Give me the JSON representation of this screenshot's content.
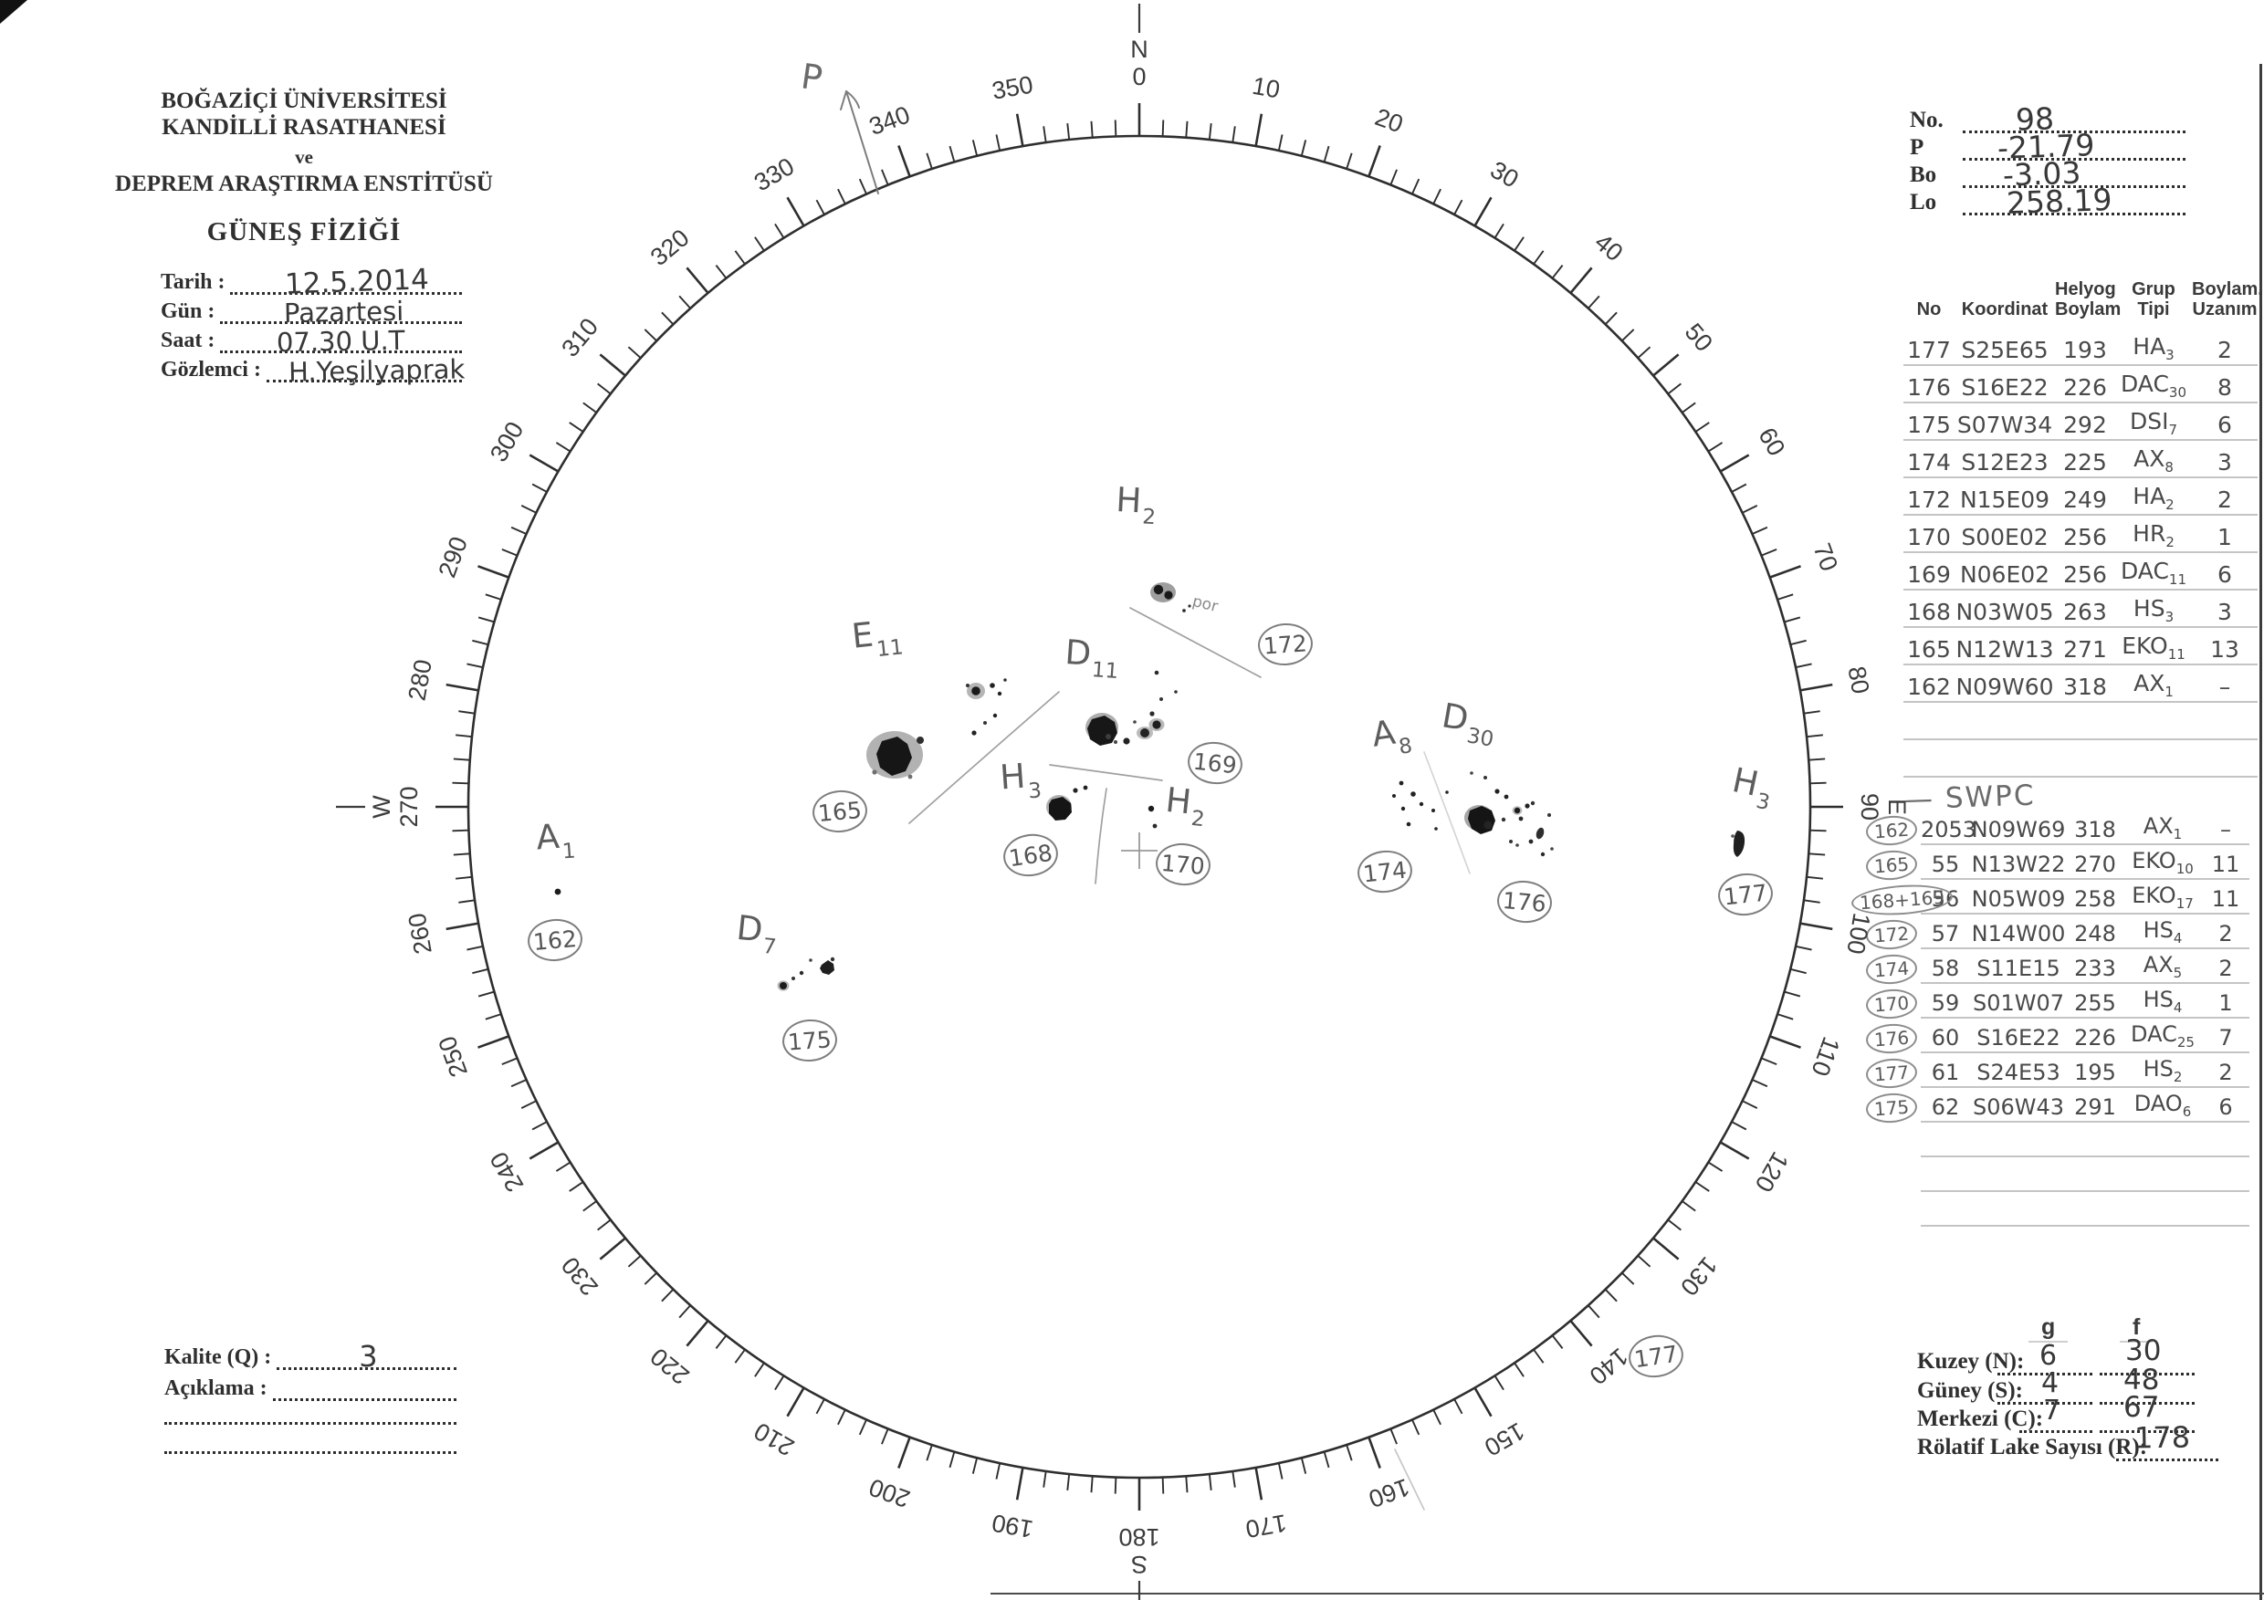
{
  "header": {
    "institution_lines": [
      "BOĞAZİÇİ ÜNİVERSİTESİ",
      "KANDİLLİ RASATHANESİ",
      "ve",
      "DEPREM ARAŞTIRMA ENSTİTÜSÜ"
    ],
    "section_title": "GÜNEŞ FİZİĞİ",
    "fields": [
      {
        "label": "Tarih :",
        "value": "12.5.2014"
      },
      {
        "label": "Gün :",
        "value": "Pazartesi"
      },
      {
        "label": "Saat :",
        "value": "07.30 U.T"
      },
      {
        "label": "Gözlemci :",
        "value": "H.Yeşilyaprak"
      }
    ]
  },
  "ephemeris": {
    "rows": [
      {
        "label": "No.",
        "value": "98"
      },
      {
        "label": "P",
        "value": "-21.79"
      },
      {
        "label": "Bo",
        "value": "-3.03"
      },
      {
        "label": "Lo",
        "value": "258.19"
      }
    ]
  },
  "groups_table": {
    "headers": [
      [
        "No",
        ""
      ],
      [
        "Koordinat",
        ""
      ],
      [
        "Helyog",
        "Boylam"
      ],
      [
        "Grup",
        "Tipi"
      ],
      [
        "Boylam.",
        "Uzanım"
      ]
    ],
    "rows": [
      {
        "no": "177",
        "koordinat": "S25E65",
        "helyog": "193",
        "tip": "HA",
        "tip_sub": "3",
        "uzanim": "2"
      },
      {
        "no": "176",
        "koordinat": "S16E22",
        "helyog": "226",
        "tip": "DAC",
        "tip_sub": "30",
        "uzanim": "8"
      },
      {
        "no": "175",
        "koordinat": "S07W34",
        "helyog": "292",
        "tip": "DSI",
        "tip_sub": "7",
        "uzanim": "6"
      },
      {
        "no": "174",
        "koordinat": "S12E23",
        "helyog": "225",
        "tip": "AX",
        "tip_sub": "8",
        "uzanim": "3"
      },
      {
        "no": "172",
        "koordinat": "N15E09",
        "helyog": "249",
        "tip": "HA",
        "tip_sub": "2",
        "uzanim": "2"
      },
      {
        "no": "170",
        "koordinat": "S00E02",
        "helyog": "256",
        "tip": "HR",
        "tip_sub": "2",
        "uzanim": "1"
      },
      {
        "no": "169",
        "koordinat": "N06E02",
        "helyog": "256",
        "tip": "DAC",
        "tip_sub": "11",
        "uzanim": "6"
      },
      {
        "no": "168",
        "koordinat": "N03W05",
        "helyog": "263",
        "tip": "HS",
        "tip_sub": "3",
        "uzanim": "3"
      },
      {
        "no": "165",
        "koordinat": "N12W13",
        "helyog": "271",
        "tip": "EKO",
        "tip_sub": "11",
        "uzanim": "13"
      },
      {
        "no": "162",
        "koordinat": "N09W60",
        "helyog": "318",
        "tip": "AX",
        "tip_sub": "1",
        "uzanim": "–"
      }
    ]
  },
  "swpc_table": {
    "heading": "— SWPC",
    "rows": [
      {
        "kandilli": "162",
        "swpc": "2053",
        "koordinat": "N09W69",
        "helyog": "318",
        "tip": "AX",
        "tip_sub": "1",
        "uzanim": "–"
      },
      {
        "kandilli": "165",
        "swpc": "55",
        "koordinat": "N13W22",
        "helyog": "270",
        "tip": "EKO",
        "tip_sub": "10",
        "uzanim": "11"
      },
      {
        "kandilli": "168+169",
        "swpc": "56",
        "koordinat": "N05W09",
        "helyog": "258",
        "tip": "EKO",
        "tip_sub": "17",
        "uzanim": "11"
      },
      {
        "kandilli": "172",
        "swpc": "57",
        "koordinat": "N14W00",
        "helyog": "248",
        "tip": "HS",
        "tip_sub": "4",
        "uzanim": "2"
      },
      {
        "kandilli": "174",
        "swpc": "58",
        "koordinat": "S11E15",
        "helyog": "233",
        "tip": "AX",
        "tip_sub": "5",
        "uzanim": "2"
      },
      {
        "kandilli": "170",
        "swpc": "59",
        "koordinat": "S01W07",
        "helyog": "255",
        "tip": "HS",
        "tip_sub": "4",
        "uzanim": "1"
      },
      {
        "kandilli": "176",
        "swpc": "60",
        "koordinat": "S16E22",
        "helyog": "226",
        "tip": "DAC",
        "tip_sub": "25",
        "uzanim": "7"
      },
      {
        "kandilli": "177",
        "swpc": "61",
        "koordinat": "S24E53",
        "helyog": "195",
        "tip": "HS",
        "tip_sub": "2",
        "uzanim": "2"
      },
      {
        "kandilli": "175",
        "swpc": "62",
        "koordinat": "S06W43",
        "helyog": "291",
        "tip": "DAO",
        "tip_sub": "6",
        "uzanim": "6"
      }
    ]
  },
  "summary": {
    "col_g": "g",
    "col_f": "f",
    "rows": [
      {
        "label": "Kuzey (N):",
        "g": "6",
        "f": "30"
      },
      {
        "label": "Güney (S):",
        "g": "4",
        "f": "48"
      },
      {
        "label": "Merkezi (C):",
        "g": "7",
        "f": "67"
      }
    ],
    "relative_label": "Rölatif Lake Sayısı (R):",
    "relative_value": "178"
  },
  "quality": {
    "label": "Kalite (Q) :",
    "value": "3",
    "aciklama_label": "Açıklama :"
  },
  "disk": {
    "pole_marker": "P",
    "cardinals": {
      "n": "N",
      "e": "E",
      "s": "S",
      "w": "W"
    },
    "degree_labels": [
      "0",
      "10",
      "20",
      "30",
      "40",
      "50",
      "60",
      "70",
      "80",
      "90",
      "100",
      "110",
      "120",
      "130",
      "140",
      "150",
      "160",
      "170",
      "180",
      "190",
      "200",
      "210",
      "220",
      "230",
      "240",
      "250",
      "260",
      "270",
      "280",
      "290",
      "300",
      "310",
      "320",
      "330",
      "340",
      "350"
    ],
    "annotations": [
      {
        "id": "165",
        "letter": "E",
        "sub": "11"
      },
      {
        "id": "169",
        "letter": "D",
        "sub": "11"
      },
      {
        "id": "168",
        "letter": "H",
        "sub": "3"
      },
      {
        "id": "170",
        "letter": "H",
        "sub": "2"
      },
      {
        "id": "172",
        "letter": "H",
        "sub": "2",
        "note": "por"
      },
      {
        "id": "174",
        "letter": "A",
        "sub": "8"
      },
      {
        "id": "176",
        "letter": "D",
        "sub": "30"
      },
      {
        "id": "177",
        "letter": "H",
        "sub": "3"
      },
      {
        "id": "162",
        "letter": "A",
        "sub": "1"
      },
      {
        "id": "175",
        "letter": "D",
        "sub": "7"
      },
      {
        "id": "177b_display",
        "display": "177"
      }
    ]
  }
}
